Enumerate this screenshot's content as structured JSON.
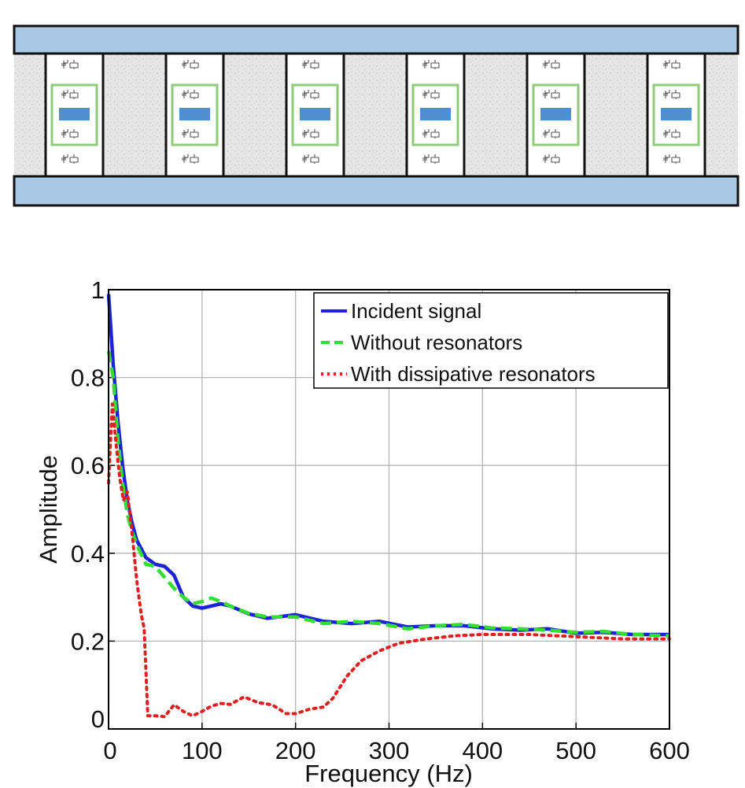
{
  "schematic": {
    "plate_color": "#a8c8e4",
    "resonator_mass_color": "#4f8fd0",
    "resonator_frame_color": "#8fcb78",
    "resonator_count": 6
  },
  "chart_data": {
    "type": "line",
    "title": "",
    "xlabel": "Frequency (Hz)",
    "ylabel": "Amplitude",
    "xlim": [
      0,
      600
    ],
    "ylim": [
      0,
      1
    ],
    "xticks": [
      0,
      100,
      200,
      300,
      400,
      500,
      600
    ],
    "yticks": [
      0,
      0.2,
      0.4,
      0.6,
      0.8,
      1
    ],
    "xtick_labels": [
      "0",
      "100",
      "200",
      "300",
      "400",
      "500",
      "600"
    ],
    "ytick_labels": [
      "0",
      "0.2",
      "0.4",
      "0.6",
      "0.8",
      "1"
    ],
    "grid": true,
    "legend_position": "top-right",
    "series": [
      {
        "name": "Incident signal",
        "color": "#1c22d8",
        "style": "solid",
        "x": [
          0,
          5,
          10,
          15,
          20,
          25,
          30,
          40,
          50,
          60,
          70,
          80,
          90,
          100,
          110,
          120,
          130,
          150,
          170,
          200,
          230,
          260,
          290,
          320,
          350,
          380,
          410,
          440,
          470,
          500,
          530,
          560,
          600
        ],
        "y": [
          0.99,
          0.83,
          0.7,
          0.6,
          0.52,
          0.47,
          0.43,
          0.39,
          0.375,
          0.37,
          0.35,
          0.3,
          0.28,
          0.275,
          0.28,
          0.285,
          0.28,
          0.262,
          0.252,
          0.26,
          0.245,
          0.24,
          0.245,
          0.232,
          0.235,
          0.235,
          0.228,
          0.225,
          0.228,
          0.218,
          0.22,
          0.215,
          0.215
        ]
      },
      {
        "name": "Without resonators",
        "color": "#33dd33",
        "style": "dashed",
        "x": [
          0,
          5,
          10,
          15,
          20,
          25,
          30,
          40,
          50,
          60,
          70,
          80,
          90,
          100,
          110,
          120,
          130,
          150,
          170,
          200,
          230,
          260,
          290,
          320,
          350,
          380,
          410,
          440,
          470,
          500,
          530,
          560,
          600
        ],
        "y": [
          0.86,
          0.8,
          0.66,
          0.56,
          0.49,
          0.45,
          0.42,
          0.375,
          0.37,
          0.345,
          0.32,
          0.3,
          0.285,
          0.29,
          0.298,
          0.29,
          0.28,
          0.263,
          0.255,
          0.255,
          0.24,
          0.245,
          0.24,
          0.228,
          0.235,
          0.238,
          0.23,
          0.228,
          0.225,
          0.22,
          0.222,
          0.215,
          0.212
        ]
      },
      {
        "name": "With dissipative resonators",
        "color": "#e02020",
        "style": "dotted",
        "x": [
          0,
          4,
          8,
          12,
          16,
          20,
          25,
          30,
          35,
          38,
          42,
          50,
          60,
          70,
          80,
          90,
          100,
          110,
          120,
          130,
          145,
          160,
          175,
          190,
          200,
          215,
          230,
          240,
          255,
          270,
          290,
          310,
          340,
          370,
          400,
          450,
          500,
          550,
          600
        ],
        "y": [
          0.56,
          0.74,
          0.65,
          0.57,
          0.52,
          0.54,
          0.45,
          0.34,
          0.26,
          0.23,
          0.03,
          0.03,
          0.028,
          0.055,
          0.04,
          0.03,
          0.04,
          0.052,
          0.058,
          0.056,
          0.073,
          0.06,
          0.055,
          0.035,
          0.035,
          0.045,
          0.05,
          0.07,
          0.12,
          0.155,
          0.178,
          0.195,
          0.205,
          0.212,
          0.215,
          0.215,
          0.21,
          0.205,
          0.205
        ]
      }
    ]
  }
}
